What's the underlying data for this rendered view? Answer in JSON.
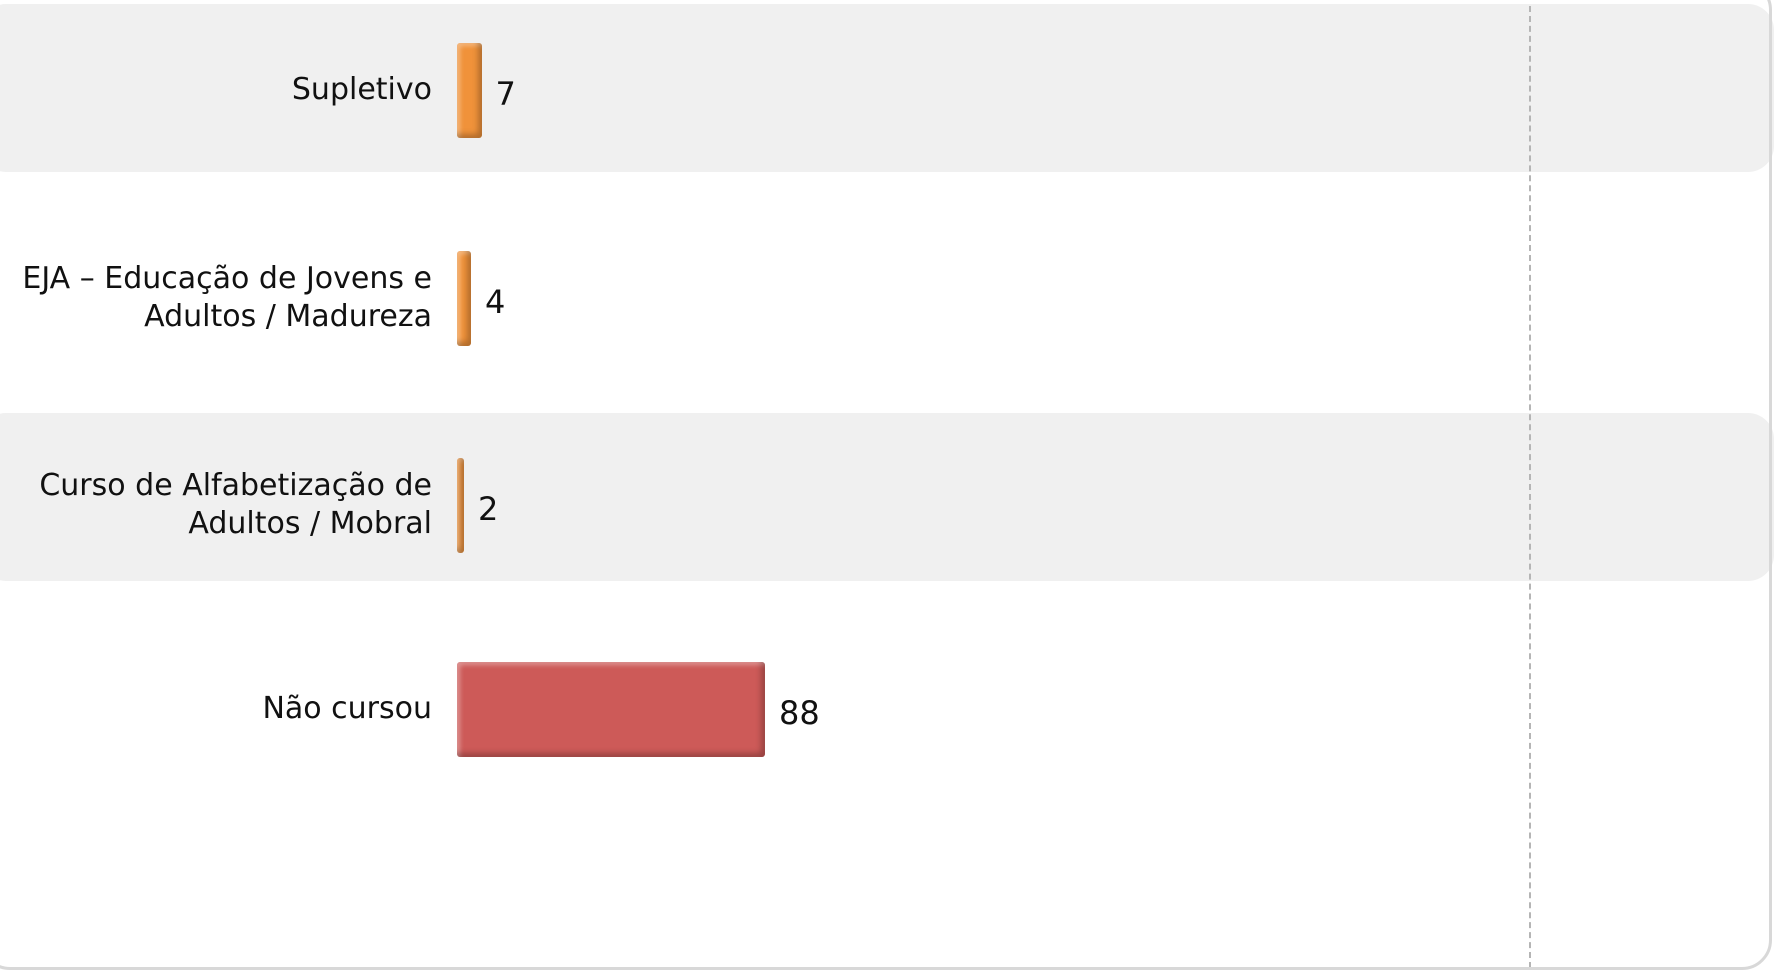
{
  "chart_data": {
    "type": "hbar",
    "categories": [
      "Supletivo",
      "EJA – Educação de Jovens e Adultos / Madureza",
      "Curso de Alfabetização de Adultos / Mobral",
      "Não cursou"
    ],
    "values": [
      7,
      4,
      2,
      88
    ],
    "colors": [
      "#f0923a",
      "#f0923a",
      "#f0923a",
      "#cd5a58"
    ]
  }
}
